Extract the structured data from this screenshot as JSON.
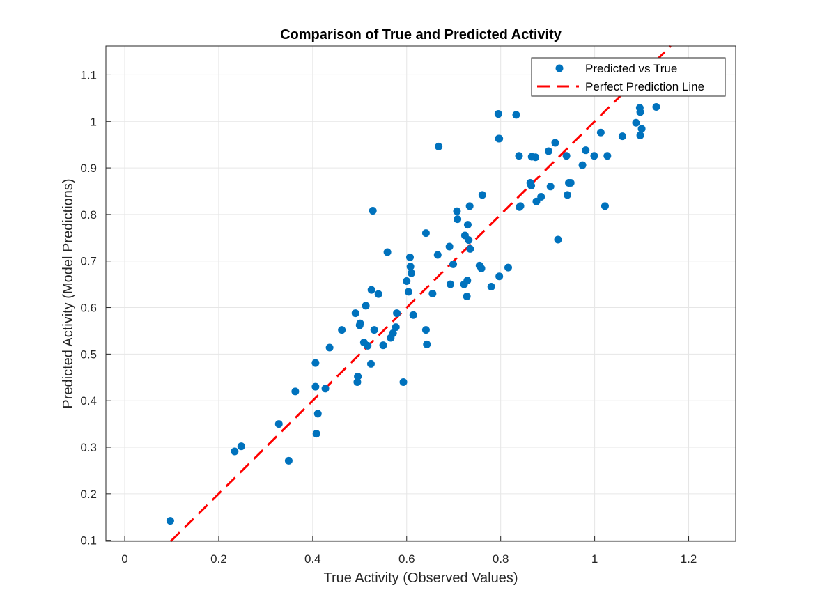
{
  "chart_data": {
    "type": "scatter",
    "title": "Comparison of True and Predicted Activity",
    "xlabel": "True Activity (Observed Values)",
    "ylabel": "Predicted Activity (Model Predictions)",
    "xlim": [
      -0.04,
      1.3
    ],
    "ylim": [
      0.098,
      1.162
    ],
    "xticks": [
      0,
      0.2,
      0.4,
      0.6,
      0.8,
      1,
      1.2
    ],
    "xtick_labels": [
      "0",
      "0.2",
      "0.4",
      "0.6",
      "0.8",
      "1",
      "1.2"
    ],
    "yticks": [
      0.1,
      0.2,
      0.3,
      0.4,
      0.5,
      0.6,
      0.7,
      0.8,
      0.9,
      1,
      1.1
    ],
    "ytick_labels": [
      "0.1",
      "0.2",
      "0.3",
      "0.4",
      "0.5",
      "0.6",
      "0.7",
      "0.8",
      "0.9",
      "1",
      "1.1"
    ],
    "grid": true,
    "legend_position": "top-right",
    "colors": {
      "points": "#0072BD",
      "reference_line": "#FF0000",
      "grid": "#E6E6E6",
      "axes": "#262626"
    },
    "series": [
      {
        "name": "Predicted vs True",
        "kind": "scatter",
        "x": [
          0.097,
          0.234,
          0.248,
          0.328,
          0.349,
          0.363,
          0.406,
          0.406,
          0.408,
          0.411,
          0.427,
          0.436,
          0.462,
          0.491,
          0.495,
          0.496,
          0.5,
          0.501,
          0.509,
          0.513,
          0.517,
          0.524,
          0.525,
          0.528,
          0.531,
          0.54,
          0.55,
          0.559,
          0.566,
          0.571,
          0.577,
          0.579,
          0.593,
          0.6,
          0.604,
          0.607,
          0.608,
          0.61,
          0.614,
          0.641,
          0.641,
          0.643,
          0.655,
          0.666,
          0.668,
          0.691,
          0.693,
          0.699,
          0.707,
          0.708,
          0.722,
          0.724,
          0.728,
          0.729,
          0.73,
          0.732,
          0.734,
          0.735,
          0.755,
          0.759,
          0.761,
          0.78,
          0.795,
          0.796,
          0.797,
          0.797,
          0.816,
          0.833,
          0.839,
          0.84,
          0.842,
          0.863,
          0.865,
          0.866,
          0.874,
          0.876,
          0.886,
          0.902,
          0.906,
          0.916,
          0.922,
          0.94,
          0.942,
          0.945,
          0.949,
          0.974,
          0.981,
          0.999,
          1.013,
          1.022,
          1.027,
          1.059,
          1.088,
          1.096,
          1.097,
          1.097,
          1.1,
          1.131,
          1.162
        ],
        "y": [
          0.142,
          0.291,
          0.302,
          0.35,
          0.271,
          0.42,
          0.481,
          0.43,
          0.329,
          0.372,
          0.426,
          0.514,
          0.552,
          0.588,
          0.44,
          0.452,
          0.562,
          0.566,
          0.525,
          0.604,
          0.518,
          0.479,
          0.638,
          0.808,
          0.552,
          0.629,
          0.519,
          0.719,
          0.535,
          0.545,
          0.558,
          0.588,
          0.44,
          0.657,
          0.634,
          0.708,
          0.688,
          0.674,
          0.584,
          0.76,
          0.552,
          0.521,
          0.63,
          0.713,
          0.946,
          0.731,
          0.65,
          0.693,
          0.807,
          0.79,
          0.65,
          0.755,
          0.624,
          0.658,
          0.778,
          0.745,
          0.818,
          0.726,
          0.69,
          0.684,
          0.842,
          0.645,
          1.016,
          0.963,
          0.963,
          0.667,
          0.686,
          1.014,
          0.926,
          0.816,
          0.818,
          0.868,
          0.862,
          0.924,
          0.923,
          0.828,
          0.838,
          0.936,
          0.86,
          0.954,
          0.746,
          0.926,
          0.842,
          0.868,
          0.868,
          0.906,
          0.938,
          0.926,
          0.976,
          0.818,
          0.926,
          0.968,
          0.997,
          1.029,
          0.97,
          1.02,
          0.984,
          1.031,
          1.062
        ]
      },
      {
        "name": "Perfect Prediction Line",
        "kind": "line",
        "style": "dashed",
        "x": [
          0.097,
          1.162
        ],
        "y": [
          0.097,
          1.162
        ]
      }
    ]
  }
}
